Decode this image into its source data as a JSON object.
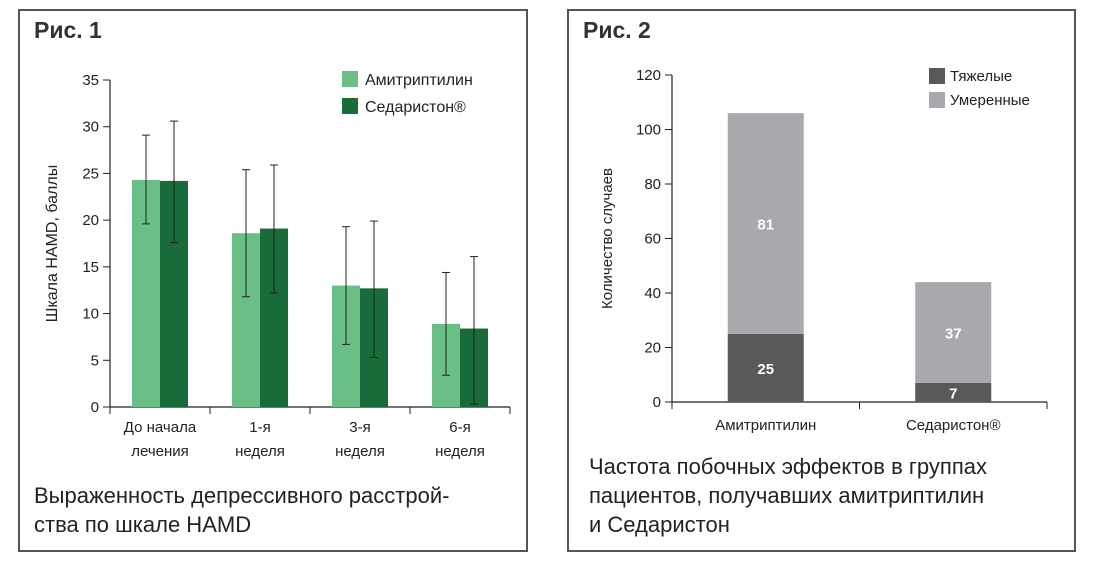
{
  "figure1": {
    "label": "Рис. 1",
    "caption": "Выраженность депрессивного расстрой-ства по шкале HAMD",
    "caption_lines": [
      "Выраженность депрессивного расстрой-",
      "ства по шкале HAMD"
    ],
    "chart_data": {
      "type": "bar",
      "title": "",
      "xlabel": "",
      "ylabel": "Шкала HAMD, баллы",
      "ylim": [
        0,
        35
      ],
      "yticks": [
        0,
        5,
        10,
        15,
        20,
        25,
        30,
        35
      ],
      "categories": [
        [
          "До начала",
          "лечения"
        ],
        [
          "1-я",
          "неделя"
        ],
        [
          "3-я",
          "неделя"
        ],
        [
          "6-я",
          "неделя"
        ]
      ],
      "series": [
        {
          "name": "Амитриптилин",
          "color": "#6abf86",
          "values": [
            24.3,
            18.6,
            13.0,
            8.9
          ],
          "err_low": [
            19.6,
            11.8,
            6.7,
            3.4
          ],
          "err_high": [
            29.1,
            25.4,
            19.3,
            14.4
          ]
        },
        {
          "name": "Седаристон®",
          "color": "#1a6b3a",
          "values": [
            24.2,
            19.1,
            12.7,
            8.4
          ],
          "err_low": [
            17.6,
            12.2,
            5.3,
            0.3
          ],
          "err_high": [
            30.6,
            25.9,
            19.9,
            16.1
          ]
        }
      ],
      "legend_position": "top-right"
    }
  },
  "figure2": {
    "label": "Рис. 2",
    "caption": "Частота побочных эффектов в группах пациентов, получавших амитриптилин и Седаристон",
    "caption_lines": [
      "Частота побочных эффектов в группах",
      "пациентов, получавших амитриптилин",
      "и Седаристон"
    ],
    "chart_data": {
      "type": "bar",
      "stacked": true,
      "title": "",
      "xlabel": "",
      "ylabel": "Количество случаев",
      "ylim": [
        0,
        120
      ],
      "yticks": [
        0,
        20,
        40,
        60,
        80,
        100,
        120
      ],
      "categories": [
        "Амитриптилин",
        "Седаристон®"
      ],
      "series": [
        {
          "name": "Тяжелые",
          "color": "#58595b",
          "values": [
            25,
            7
          ]
        },
        {
          "name": "Умеренные",
          "color": "#a7a9ac",
          "values": [
            81,
            37
          ]
        }
      ],
      "legend_position": "top-right"
    }
  }
}
